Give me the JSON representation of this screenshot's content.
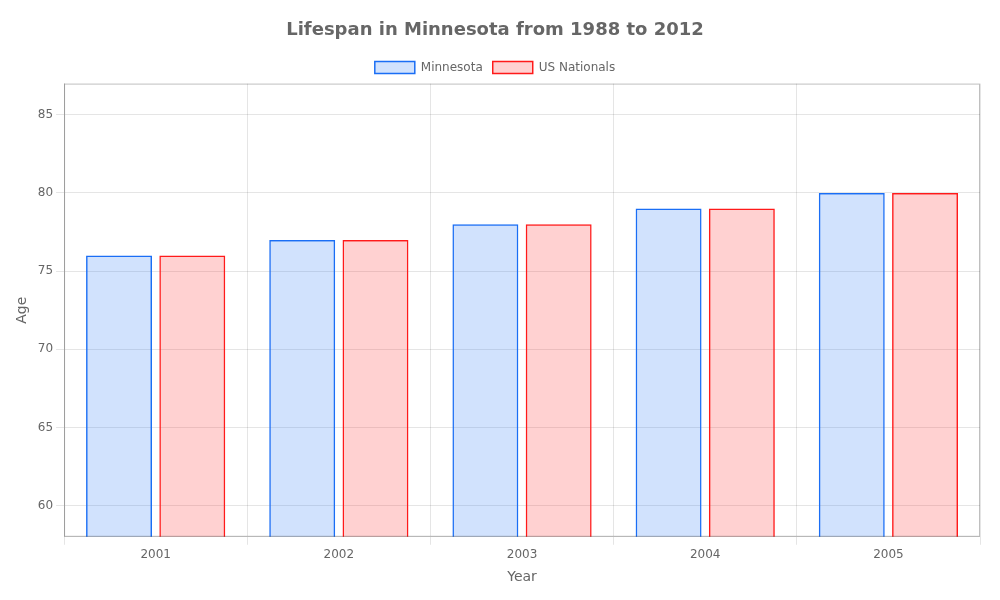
{
  "chart_data": {
    "type": "bar",
    "title": "Lifespan in Minnesota from 1988 to 2012",
    "x_label": "Year",
    "y_label": "Age",
    "categories": [
      "2001",
      "2002",
      "2003",
      "2004",
      "2005"
    ],
    "series": [
      {
        "name": "Minnesota",
        "color": "#1a6ef5",
        "values": [
          76,
          77,
          78,
          79,
          80
        ]
      },
      {
        "name": "US Nationals",
        "color": "#ff1a1a",
        "values": [
          76,
          77,
          78,
          79,
          80
        ]
      }
    ],
    "ylim": [
      58,
      87
    ],
    "yticks": [
      60,
      65,
      70,
      75,
      80,
      85
    ],
    "grid": true,
    "legend": "top"
  }
}
